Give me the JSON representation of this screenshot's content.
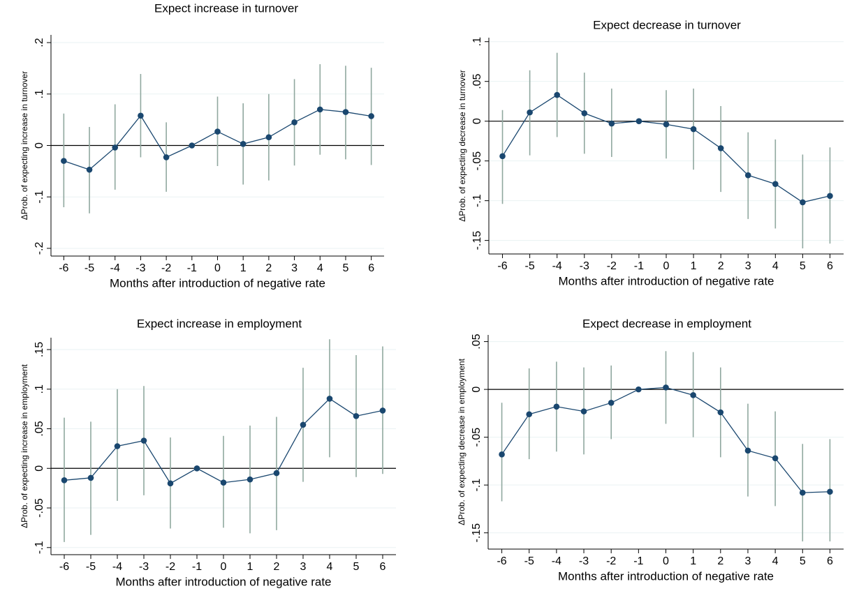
{
  "chart_data": [
    {
      "type": "line",
      "title": "Expect increase in turnover",
      "x_label": "Months after introduction of negative rate",
      "y_label": "ΔProb. of expecting increase in turnover",
      "x": [
        -6,
        -5,
        -4,
        -3,
        -2,
        -1,
        0,
        1,
        2,
        3,
        4,
        5,
        6
      ],
      "values": [
        -0.03,
        -0.047,
        -0.004,
        0.058,
        -0.023,
        0,
        0.027,
        0.003,
        0.016,
        0.045,
        0.07,
        0.065,
        0.057
      ],
      "ci_low": [
        -0.12,
        -0.132,
        -0.086,
        -0.023,
        -0.09,
        null,
        -0.04,
        -0.076,
        -0.068,
        -0.039,
        -0.018,
        -0.027,
        -0.038
      ],
      "ci_high": [
        0.062,
        0.036,
        0.08,
        0.139,
        0.045,
        null,
        0.095,
        0.082,
        0.1,
        0.129,
        0.158,
        0.155,
        0.151
      ],
      "color": "#1a476f",
      "error_color": "#90a89f",
      "reference_line": 0,
      "grid": true,
      "xlim": [
        -6.5,
        6.5
      ],
      "xticks": [
        -6,
        -5,
        -4,
        -3,
        -2,
        -1,
        0,
        1,
        2,
        3,
        4,
        5,
        6
      ],
      "ylim": [
        -0.215,
        0.215
      ],
      "yticks": [
        {
          "value": -0.2,
          "label": "-.2"
        },
        {
          "value": -0.1,
          "label": "-.1"
        },
        0,
        {
          "value": 0.1,
          "label": ".1"
        },
        {
          "value": 0.2,
          "label": ".2"
        }
      ]
    },
    {
      "type": "line",
      "title": "Expect decrease in turnover",
      "x_label": "Months after introduction of negative rate",
      "y_label": "ΔProb. of expecting decrease in turnover",
      "x": [
        -6,
        -5,
        -4,
        -3,
        -2,
        -1,
        0,
        1,
        2,
        3,
        4,
        5,
        6
      ],
      "values": [
        -0.044,
        0.011,
        0.033,
        0.01,
        -0.003,
        0,
        -0.004,
        -0.01,
        -0.034,
        -0.068,
        -0.079,
        -0.102,
        -0.094
      ],
      "ci_low": [
        -0.104,
        -0.043,
        -0.02,
        -0.041,
        -0.045,
        null,
        -0.047,
        -0.061,
        -0.089,
        -0.123,
        -0.135,
        -0.16,
        -0.154
      ],
      "ci_high": [
        0.014,
        0.064,
        0.086,
        0.061,
        0.041,
        null,
        0.039,
        0.041,
        0.019,
        -0.014,
        -0.023,
        -0.042,
        -0.033
      ],
      "color": "#1a476f",
      "error_color": "#90a89f",
      "reference_line": 0,
      "grid": true,
      "xlim": [
        -6.5,
        6.5
      ],
      "xticks": [
        -6,
        -5,
        -4,
        -3,
        -2,
        -1,
        0,
        1,
        2,
        3,
        4,
        5,
        6
      ],
      "ylim": [
        -0.167,
        0.105
      ],
      "yticks": [
        {
          "value": -0.15,
          "label": "-.15"
        },
        {
          "value": -0.1,
          "label": "-.1"
        },
        {
          "value": -0.05,
          "label": "-.05"
        },
        0,
        {
          "value": 0.05,
          "label": ".05"
        },
        {
          "value": 0.1,
          "label": ".1"
        }
      ]
    },
    {
      "type": "line",
      "title": "Expect increase in employment",
      "x_label": "Months after introduction of negative rate",
      "y_label": "ΔProb. of expecting increase in employment",
      "x": [
        -6,
        -5,
        -4,
        -3,
        -2,
        -1,
        0,
        1,
        2,
        3,
        4,
        5,
        6
      ],
      "values": [
        -0.015,
        -0.012,
        0.028,
        0.035,
        -0.019,
        0,
        -0.018,
        -0.014,
        -0.006,
        0.055,
        0.088,
        0.066,
        0.073
      ],
      "ci_low": [
        -0.093,
        -0.084,
        -0.041,
        -0.034,
        -0.076,
        null,
        -0.075,
        -0.082,
        -0.078,
        -0.017,
        0.014,
        -0.011,
        -0.007
      ],
      "ci_high": [
        0.064,
        0.059,
        0.1,
        0.104,
        0.039,
        null,
        0.041,
        0.054,
        0.065,
        0.127,
        0.163,
        0.143,
        0.154
      ],
      "color": "#1a476f",
      "error_color": "#90a89f",
      "reference_line": 0,
      "grid": true,
      "xlim": [
        -6.5,
        6.5
      ],
      "xticks": [
        -6,
        -5,
        -4,
        -3,
        -2,
        -1,
        0,
        1,
        2,
        3,
        4,
        5,
        6
      ],
      "ylim": [
        -0.109,
        0.165
      ],
      "yticks": [
        {
          "value": -0.1,
          "label": "-.1"
        },
        {
          "value": -0.05,
          "label": "-.05"
        },
        0,
        {
          "value": 0.05,
          "label": ".05"
        },
        {
          "value": 0.1,
          "label": ".1"
        },
        {
          "value": 0.15,
          "label": ".15"
        }
      ]
    },
    {
      "type": "line",
      "title": "Expect decrease in employment",
      "x_label": "Months after introduction of negative rate",
      "y_label": "ΔProb. of expecting decrease in employment",
      "x": [
        -6,
        -5,
        -4,
        -3,
        -2,
        -1,
        0,
        1,
        2,
        3,
        4,
        5,
        6
      ],
      "values": [
        -0.068,
        -0.026,
        -0.018,
        -0.023,
        -0.014,
        0,
        0.002,
        -0.006,
        -0.024,
        -0.064,
        -0.072,
        -0.108,
        -0.107
      ],
      "ci_low": [
        -0.117,
        -0.073,
        -0.065,
        -0.068,
        -0.052,
        null,
        -0.036,
        -0.05,
        -0.071,
        -0.112,
        -0.122,
        -0.159,
        -0.159
      ],
      "ci_high": [
        -0.014,
        0.022,
        0.029,
        0.023,
        0.025,
        null,
        0.04,
        0.039,
        0.023,
        -0.015,
        -0.023,
        -0.057,
        -0.052
      ],
      "color": "#1a476f",
      "error_color": "#90a89f",
      "reference_line": 0,
      "grid": true,
      "xlim": [
        -6.5,
        6.5
      ],
      "xticks": [
        -6,
        -5,
        -4,
        -3,
        -2,
        -1,
        0,
        1,
        2,
        3,
        4,
        5,
        6
      ],
      "ylim": [
        -0.167,
        0.057
      ],
      "yticks": [
        {
          "value": -0.15,
          "label": "-.15"
        },
        {
          "value": -0.1,
          "label": "-.1"
        },
        {
          "value": -0.05,
          "label": "-.05"
        },
        0,
        {
          "value": 0.05,
          "label": ".05"
        }
      ]
    }
  ]
}
